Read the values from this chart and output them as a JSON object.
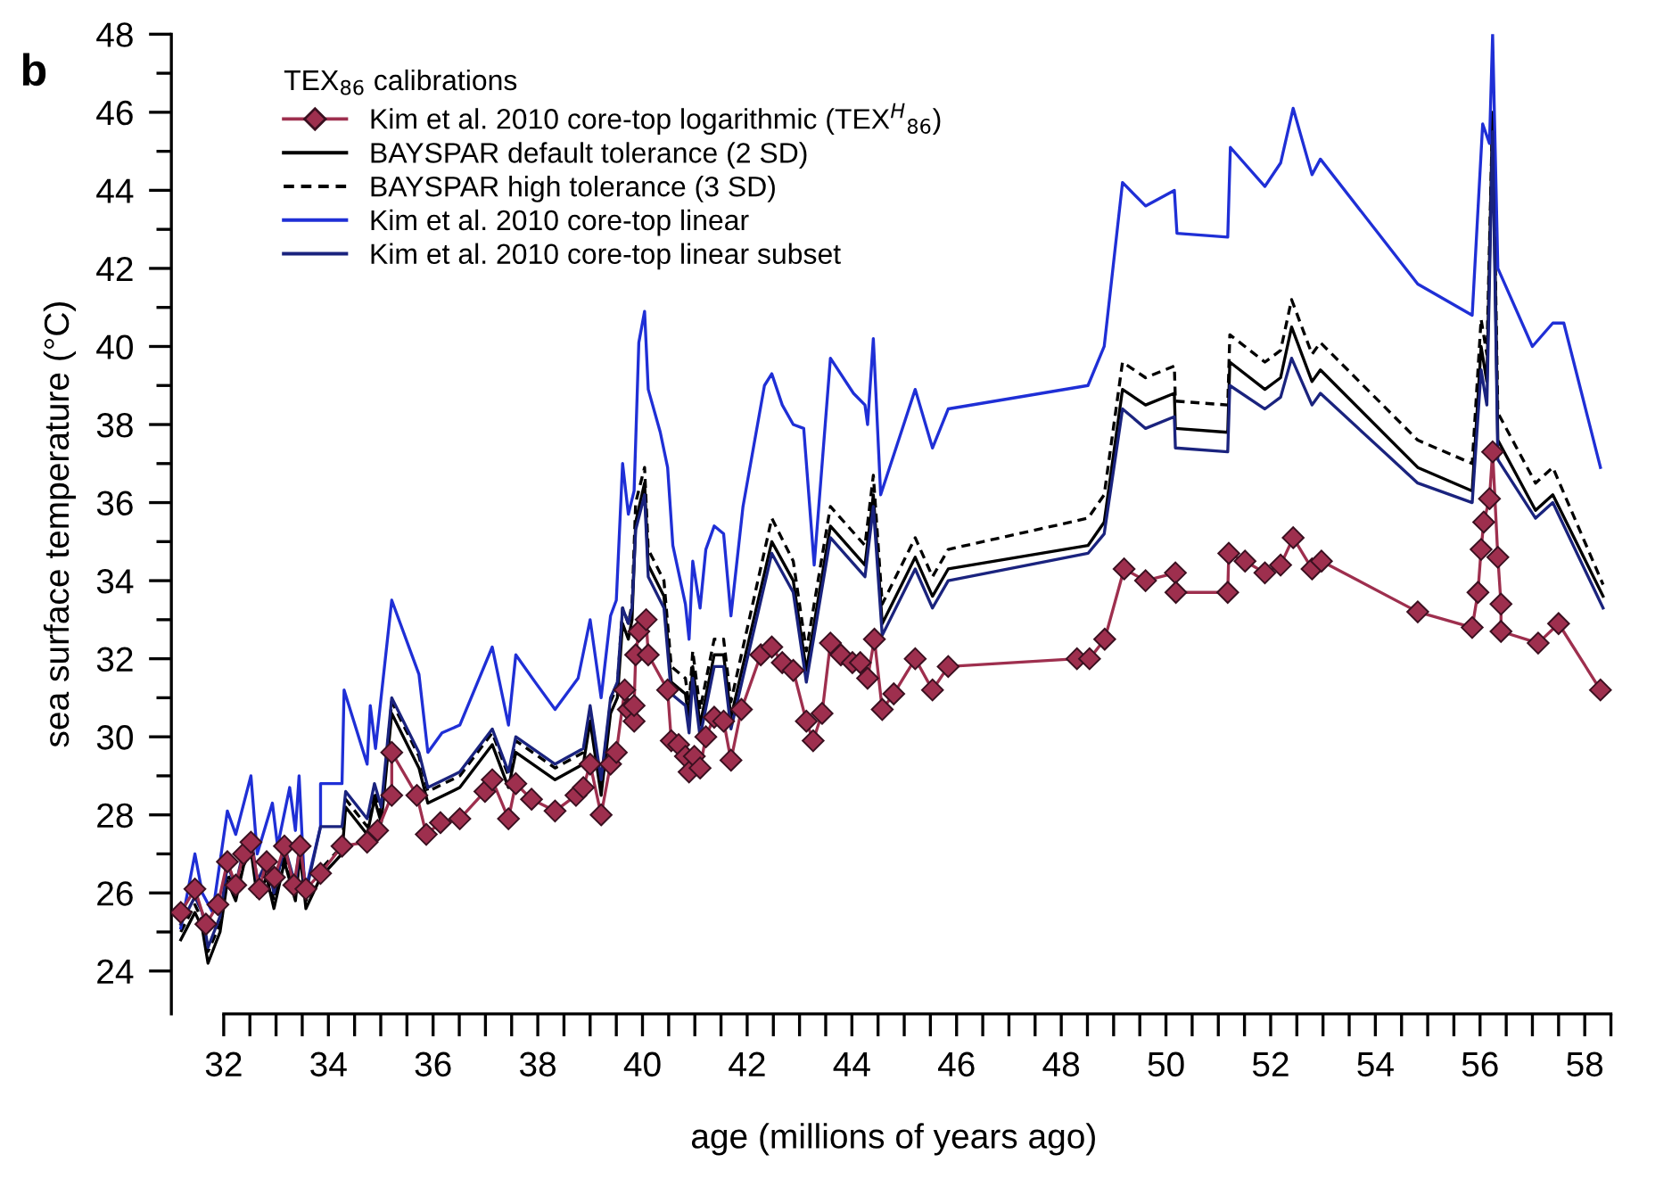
{
  "chart_data": {
    "type": "line",
    "xlabel": "age (millions of years ago)",
    "ylabel": "sea surface temperature (°C)",
    "legend_title": "TEX$_{86}$ calibrations",
    "legend": "top left",
    "annotations": [
      "b"
    ],
    "xlim": [
      31.0,
      58.6
    ],
    "ylim": [
      22.9,
      48
    ],
    "xticks": [
      32,
      {
        "value": 32.5,
        "label": null
      },
      {
        "value": 33,
        "label": null
      },
      {
        "value": 33.5,
        "label": null
      },
      34,
      {
        "value": 34.5,
        "label": null
      },
      {
        "value": 35,
        "label": null
      },
      {
        "value": 35.5,
        "label": null
      },
      36,
      {
        "value": 36.5,
        "label": null
      },
      {
        "value": 37,
        "label": null
      },
      {
        "value": 37.5,
        "label": null
      },
      38,
      {
        "value": 38.5,
        "label": null
      },
      {
        "value": 39,
        "label": null
      },
      {
        "value": 39.5,
        "label": null
      },
      40,
      {
        "value": 40.5,
        "label": null
      },
      {
        "value": 41,
        "label": null
      },
      {
        "value": 41.5,
        "label": null
      },
      42,
      {
        "value": 42.5,
        "label": null
      },
      {
        "value": 43,
        "label": null
      },
      {
        "value": 43.5,
        "label": null
      },
      44,
      {
        "value": 44.5,
        "label": null
      },
      {
        "value": 45,
        "label": null
      },
      {
        "value": 45.5,
        "label": null
      },
      46,
      {
        "value": 46.5,
        "label": null
      },
      {
        "value": 47,
        "label": null
      },
      {
        "value": 47.5,
        "label": null
      },
      48,
      {
        "value": 48.5,
        "label": null
      },
      {
        "value": 49,
        "label": null
      },
      {
        "value": 49.5,
        "label": null
      },
      50,
      {
        "value": 50.5,
        "label": null
      },
      {
        "value": 51,
        "label": null
      },
      {
        "value": 51.5,
        "label": null
      },
      52,
      {
        "value": 52.5,
        "label": null
      },
      {
        "value": 53,
        "label": null
      },
      {
        "value": 53.5,
        "label": null
      },
      54,
      {
        "value": 54.5,
        "label": null
      },
      {
        "value": 55,
        "label": null
      },
      {
        "value": 55.5,
        "label": null
      },
      56,
      {
        "value": 56.5,
        "label": null
      },
      {
        "value": 57,
        "label": null
      },
      {
        "value": 57.5,
        "label": null
      },
      58,
      {
        "value": 58.5,
        "label": null
      }
    ],
    "yticks": [
      24,
      {
        "value": 25,
        "label": null
      },
      26,
      {
        "value": 27,
        "label": null
      },
      28,
      {
        "value": 29,
        "label": null
      },
      30,
      {
        "value": 31,
        "label": null
      },
      32,
      {
        "value": 33,
        "label": null
      },
      34,
      {
        "value": 35,
        "label": null
      },
      36,
      {
        "value": 37,
        "label": null
      },
      38,
      {
        "value": 39,
        "label": null
      },
      40,
      {
        "value": 41,
        "label": null
      },
      42,
      {
        "value": 43,
        "label": null
      },
      44,
      {
        "value": 45,
        "label": null
      },
      46,
      {
        "value": 47,
        "label": null
      },
      48
    ],
    "grid": false,
    "x": [
      31.18,
      31.45,
      31.59,
      31.7,
      31.93,
      32.07,
      32.23,
      32.38,
      32.52,
      32.64,
      32.82,
      32.96,
      33.16,
      33.37,
      33.46,
      33.57,
      33.85,
      34.26,
      34.33,
      34.74,
      34.88,
      35.01,
      35.21,
      35.73,
      35.9,
      36.51,
      37.13,
      37.44,
      37.58,
      38.33,
      38.87,
      39.0,
      39.21,
      39.39,
      39.52,
      39.62,
      39.73,
      39.8,
      39.87,
      40.04,
      40.11,
      40.41,
      40.55,
      40.82,
      40.89,
      40.96,
      41.1,
      41.37,
      41.55,
      41.69,
      42.47,
      42.88,
      43.13,
      43.59,
      44.25,
      44.41,
      44.58,
      45.21,
      45.54,
      45.84,
      48.51,
      48.82,
      49.17,
      49.61,
      50.16,
      50.18,
      51.18,
      51.22,
      51.89,
      52.19,
      52.4,
      52.79,
      52.95,
      54.81,
      55.85,
      56.02,
      56.13,
      56.24,
      56.34,
      57.06,
      57.39,
      58.35
    ],
    "series": [
      {
        "name": "Kim et al. 2010 core-top logarithmic (TEX$^{H}$$_{86}$)",
        "color": "#9e2f4e",
        "marker": "diamond",
        "line_style": "solid",
        "x": [
          31.18,
          31.45,
          31.66,
          31.89,
          32.07,
          32.23,
          32.38,
          32.52,
          32.68,
          32.82,
          32.97,
          33.16,
          33.34,
          33.46,
          33.57,
          33.85,
          34.26,
          34.74,
          34.94,
          35.21,
          35.21,
          35.69,
          35.87,
          36.14,
          36.51,
          36.99,
          37.13,
          37.44,
          37.58,
          37.88,
          38.33,
          38.73,
          38.87,
          39.0,
          39.21,
          39.39,
          39.5,
          39.66,
          39.73,
          39.84,
          39.84,
          39.87,
          39.93,
          40.07,
          40.11,
          40.48,
          40.55,
          40.69,
          40.82,
          40.89,
          40.99,
          41.1,
          41.21,
          41.37,
          41.55,
          41.69,
          41.89,
          42.26,
          42.47,
          42.67,
          42.88,
          43.13,
          43.26,
          43.43,
          43.59,
          43.79,
          44.01,
          44.16,
          44.3,
          44.43,
          44.58,
          44.8,
          45.21,
          45.54,
          45.84,
          48.3,
          48.54,
          48.83,
          49.2,
          49.61,
          50.18,
          50.19,
          51.18,
          51.2,
          51.51,
          51.89,
          52.19,
          52.43,
          52.79,
          52.97,
          54.81,
          55.85,
          55.96,
          56.02,
          56.07,
          56.18,
          56.24,
          56.34,
          56.4,
          56.4,
          57.11,
          57.5,
          58.3
        ],
        "values": [
          25.5,
          26.1,
          25.2,
          25.7,
          26.8,
          26.2,
          27.0,
          27.3,
          26.1,
          26.8,
          26.4,
          27.2,
          26.2,
          27.2,
          26.1,
          26.5,
          27.2,
          27.3,
          27.6,
          28.5,
          29.6,
          28.5,
          27.5,
          27.8,
          27.9,
          28.6,
          28.9,
          27.9,
          28.8,
          28.4,
          28.1,
          28.5,
          28.7,
          29.3,
          28.0,
          29.3,
          29.6,
          31.2,
          30.7,
          30.4,
          30.8,
          32.1,
          32.7,
          33.0,
          32.1,
          31.2,
          29.9,
          29.8,
          29.5,
          29.1,
          29.5,
          29.2,
          30.0,
          30.5,
          30.4,
          29.4,
          30.7,
          32.1,
          32.3,
          31.9,
          31.7,
          30.4,
          29.9,
          30.6,
          32.4,
          32.1,
          31.9,
          31.9,
          31.5,
          32.5,
          30.7,
          31.1,
          32.0,
          31.2,
          31.8,
          32.0,
          32.0,
          32.5,
          34.3,
          34.0,
          34.2,
          33.7,
          33.7,
          34.7,
          34.5,
          34.2,
          34.4,
          35.1,
          34.3,
          34.5,
          33.2,
          32.8,
          33.7,
          34.8,
          35.5,
          36.1,
          37.3,
          34.6,
          33.4,
          32.7,
          32.4,
          32.9,
          31.2
        ]
      },
      {
        "name": "BAYSPAR default tolerance (2 SD)",
        "color": "#000000",
        "marker": "none",
        "line_style": "solid",
        "values": [
          24.8,
          25.5,
          25.1,
          24.2,
          25.0,
          26.3,
          25.8,
          26.7,
          27.1,
          25.9,
          26.4,
          25.6,
          26.8,
          25.8,
          27.0,
          25.6,
          26.4,
          27.0,
          28.2,
          27.5,
          28.4,
          27.8,
          30.6,
          29.2,
          28.3,
          28.7,
          29.8,
          28.7,
          29.6,
          28.9,
          29.3,
          30.4,
          28.5,
          30.6,
          31.0,
          32.9,
          32.5,
          33.0,
          35.5,
          36.5,
          34.4,
          33.6,
          31.4,
          31.1,
          30.4,
          31.8,
          30.3,
          32.1,
          32.1,
          30.5,
          35.0,
          34.0,
          31.7,
          35.4,
          34.4,
          36.2,
          32.9,
          34.6,
          33.6,
          34.3,
          34.9,
          35.5,
          38.9,
          38.5,
          38.8,
          37.9,
          37.8,
          39.6,
          38.9,
          39.2,
          40.5,
          39.1,
          39.4,
          36.9,
          36.3,
          40.0,
          39.1,
          46.0,
          37.6,
          35.8,
          36.2,
          33.6
        ]
      },
      {
        "name": "BAYSPAR high tolerance (3 SD)",
        "color": "#000000",
        "marker": "none",
        "line_style": "dashed",
        "values": [
          25.0,
          25.7,
          25.3,
          24.5,
          25.2,
          26.5,
          26.0,
          26.9,
          27.3,
          26.1,
          26.6,
          25.8,
          27.0,
          26.0,
          27.2,
          25.8,
          26.6,
          27.2,
          28.4,
          27.7,
          28.6,
          28.0,
          30.9,
          29.5,
          28.6,
          29.0,
          30.1,
          29.0,
          29.9,
          29.2,
          29.6,
          30.7,
          28.8,
          30.9,
          31.3,
          33.3,
          32.9,
          33.4,
          36.0,
          36.9,
          34.8,
          34.0,
          31.8,
          31.5,
          30.8,
          32.2,
          30.7,
          32.5,
          32.5,
          30.9,
          35.6,
          34.5,
          32.2,
          35.9,
          34.9,
          36.7,
          33.4,
          35.1,
          34.1,
          34.8,
          35.6,
          36.2,
          39.6,
          39.2,
          39.5,
          38.6,
          38.5,
          40.3,
          39.6,
          39.9,
          41.2,
          39.8,
          40.1,
          37.6,
          37.0,
          40.7,
          39.8,
          46.0,
          38.3,
          36.5,
          36.9,
          33.9
        ]
      },
      {
        "name": "Kim et al. 2010 core-top linear",
        "color": "#1f2fd6",
        "marker": "none",
        "line_style": "solid",
        "x": [
          31.18,
          31.45,
          31.59,
          31.79,
          32.07,
          32.23,
          32.52,
          32.64,
          32.93,
          33.03,
          33.26,
          33.37,
          33.44,
          33.55,
          33.85,
          33.85,
          34.26,
          34.3,
          34.74,
          34.8,
          34.9,
          35.21,
          35.73,
          35.9,
          36.17,
          36.51,
          37.13,
          37.44,
          37.58,
          37.95,
          38.33,
          38.77,
          39.0,
          39.21,
          39.39,
          39.5,
          39.62,
          39.73,
          39.84,
          39.93,
          40.04,
          40.11,
          40.34,
          40.48,
          40.58,
          40.82,
          40.89,
          40.96,
          41.1,
          41.21,
          41.37,
          41.55,
          41.69,
          41.92,
          42.33,
          42.47,
          42.67,
          42.88,
          43.08,
          43.28,
          43.59,
          44.03,
          44.25,
          44.3,
          44.41,
          44.55,
          45.21,
          45.54,
          45.84,
          48.51,
          48.82,
          49.17,
          49.61,
          50.16,
          50.21,
          51.18,
          51.23,
          51.89,
          52.19,
          52.43,
          52.79,
          52.95,
          54.81,
          55.85,
          56.05,
          56.18,
          56.24,
          56.34,
          57.0,
          57.39,
          57.6,
          58.3
        ],
        "values": [
          25.1,
          27.0,
          26.0,
          25.5,
          28.1,
          27.5,
          29.0,
          27.0,
          28.3,
          27.2,
          28.7,
          27.6,
          29.0,
          26.0,
          27.7,
          28.8,
          28.8,
          31.2,
          29.3,
          30.8,
          29.7,
          33.5,
          31.6,
          29.6,
          30.1,
          30.3,
          32.3,
          30.3,
          32.1,
          31.4,
          30.7,
          31.5,
          33.0,
          31.0,
          33.1,
          33.5,
          37.0,
          35.7,
          36.3,
          40.1,
          40.9,
          38.9,
          37.8,
          36.9,
          34.9,
          33.4,
          32.5,
          34.5,
          33.3,
          34.8,
          35.4,
          35.2,
          33.1,
          35.9,
          39.0,
          39.3,
          38.5,
          38.0,
          37.9,
          34.4,
          39.7,
          38.8,
          38.5,
          38.0,
          40.2,
          36.2,
          38.9,
          37.4,
          38.4,
          39.0,
          40.0,
          44.2,
          43.6,
          44.0,
          42.9,
          42.8,
          45.1,
          44.1,
          44.7,
          46.1,
          44.4,
          44.8,
          41.6,
          40.8,
          45.7,
          45.2,
          48.0,
          42.0,
          40.0,
          40.6,
          40.6,
          36.9
        ]
      },
      {
        "name": "Kim et al. 2010 core-top linear subset",
        "color": "#1a237e",
        "marker": "none",
        "line_style": "solid",
        "values": [
          25.2,
          25.9,
          25.5,
          24.6,
          25.4,
          26.7,
          26.2,
          27.1,
          27.5,
          26.3,
          26.8,
          26.0,
          27.2,
          26.2,
          27.4,
          26.0,
          27.7,
          27.7,
          28.6,
          27.9,
          28.8,
          28.2,
          31.0,
          29.6,
          28.7,
          29.1,
          30.2,
          29.1,
          30.0,
          29.3,
          29.7,
          30.8,
          28.9,
          31.0,
          31.4,
          33.3,
          32.9,
          33.3,
          35.3,
          36.2,
          34.1,
          33.3,
          31.1,
          30.8,
          30.1,
          31.5,
          30.0,
          31.8,
          31.8,
          30.2,
          34.7,
          33.7,
          31.4,
          35.1,
          34.1,
          35.9,
          32.6,
          34.3,
          33.3,
          34.0,
          34.7,
          35.2,
          38.4,
          37.9,
          38.2,
          37.4,
          37.3,
          39.0,
          38.4,
          38.7,
          39.7,
          38.5,
          38.8,
          36.5,
          36.0,
          39.4,
          38.5,
          45.5,
          37.1,
          35.6,
          36.0,
          33.3
        ]
      }
    ]
  }
}
